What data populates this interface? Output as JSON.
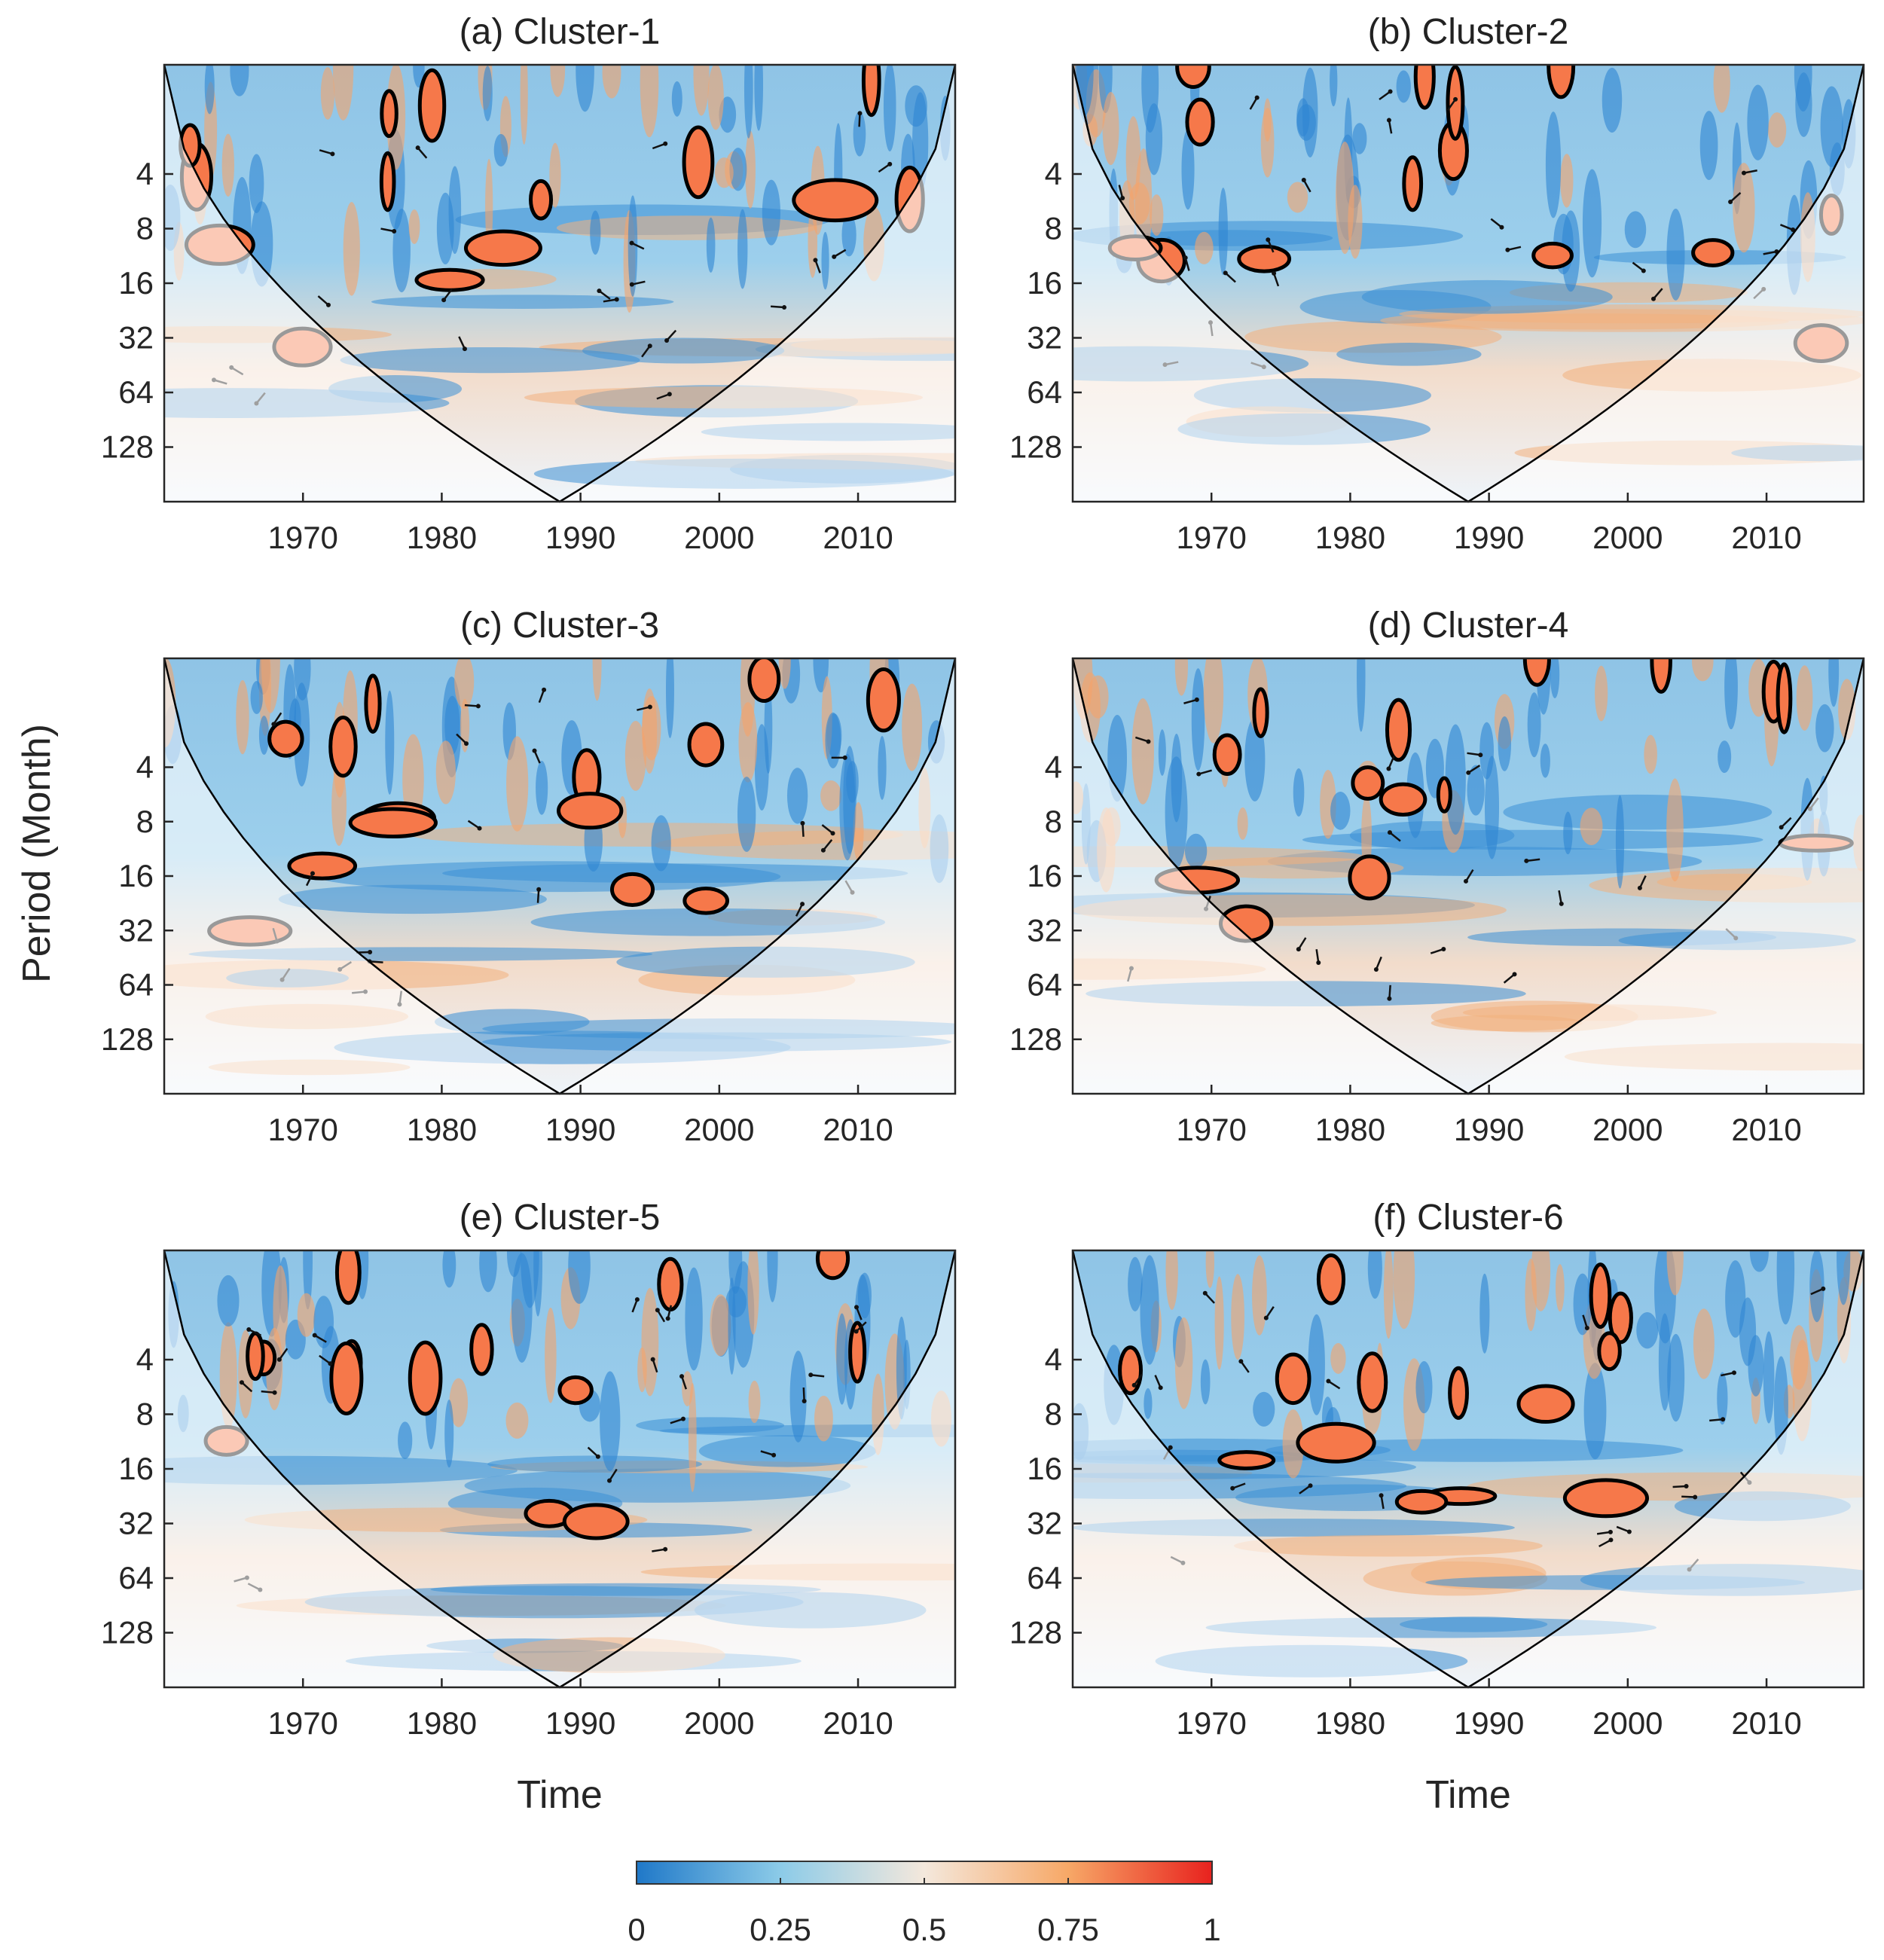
{
  "chart_data": {
    "type": "heatmap",
    "description_kind": "wavelet coherence",
    "shared_axes": {
      "xlabel": "Time",
      "ylabel": "Period (Month)",
      "x_range": [
        1960,
        2017
      ],
      "x_ticks": [
        1970,
        1980,
        1990,
        2000,
        2010
      ],
      "y_scale": "log2",
      "y_range": [
        1,
        256
      ],
      "y_ticks": [
        4,
        8,
        16,
        32,
        64,
        128
      ]
    },
    "panels": [
      {
        "title": "(a) Cluster-1"
      },
      {
        "title": "(b) Cluster-2"
      },
      {
        "title": "(c) Cluster-3"
      },
      {
        "title": "(d) Cluster-4"
      },
      {
        "title": "(e) Cluster-5"
      },
      {
        "title": "(f) Cluster-6"
      }
    ],
    "colorbar": {
      "range": [
        0,
        1
      ],
      "ticks": [
        "0",
        "0.25",
        "0.5",
        "0.75",
        "1"
      ],
      "colors": [
        "#1f78c8",
        "#8ccbe8",
        "#f4e8dc",
        "#f7a867",
        "#e8221e"
      ]
    }
  }
}
